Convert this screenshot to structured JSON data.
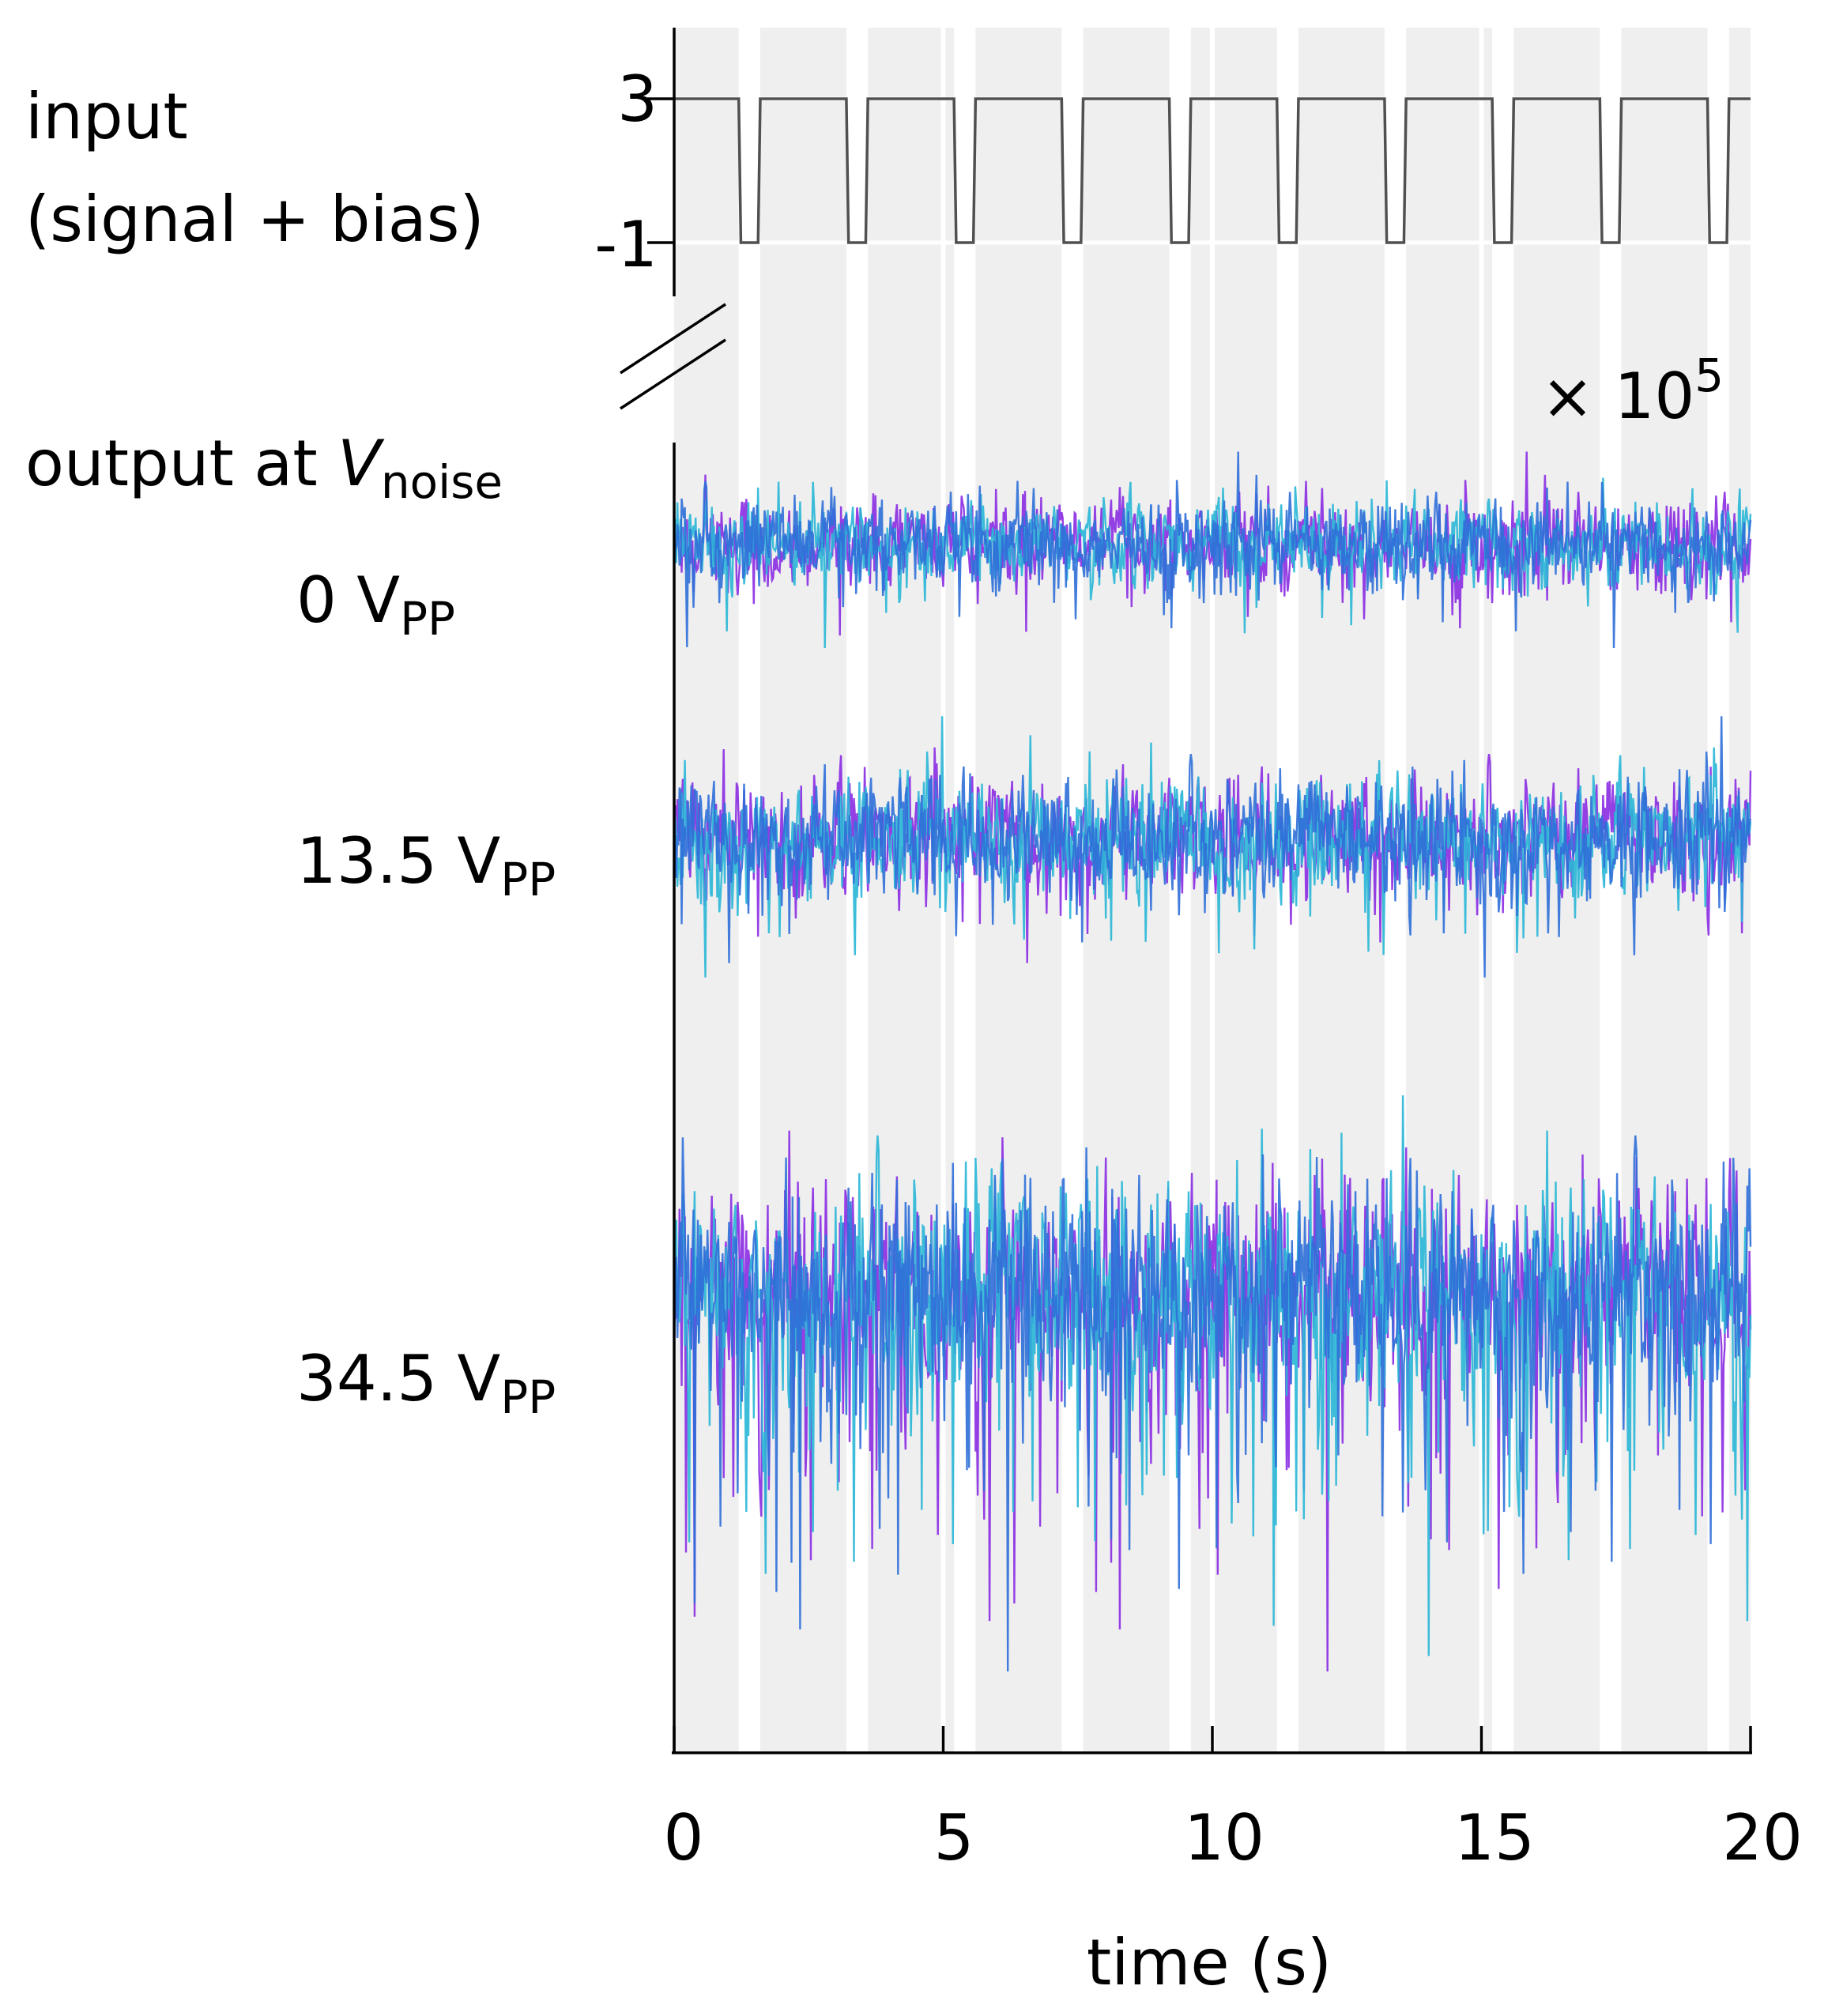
{
  "chart_data": {
    "type": "line",
    "xlabel": "time (s)",
    "xlim": [
      0,
      20
    ],
    "xticks": [
      "0",
      "5",
      "10",
      "15",
      "20"
    ],
    "input_panel": {
      "label_line1": "input",
      "label_line2": "(signal + bias)",
      "yticks": [
        "3",
        "-1"
      ],
      "high": 3,
      "low": -1,
      "low_intervals": [
        [
          1.2,
          1.6
        ],
        [
          3.2,
          3.6
        ],
        [
          5.2,
          5.6
        ],
        [
          7.2,
          7.6
        ],
        [
          9.2,
          9.6
        ],
        [
          11.2,
          11.6
        ],
        [
          13.2,
          13.6
        ],
        [
          15.2,
          15.6
        ],
        [
          17.2,
          17.6
        ],
        [
          19.2,
          19.6
        ]
      ]
    },
    "output_panel": {
      "label_prefix": "output at ",
      "label_var": "V",
      "label_sub": "noise",
      "scale_prefix": "× 10",
      "scale_exp": "5",
      "series_colors": [
        "#8a2be2",
        "#29b6d6",
        "#2f6fd8"
      ],
      "traces": [
        {
          "name_value": "0 V",
          "name_sub": "PP",
          "noise_amp": 1.0,
          "spike_rate": 0.02,
          "spike_amp": 2.0
        },
        {
          "name_value": "13.5 V",
          "name_sub": "PP",
          "noise_amp": 1.15,
          "spike_rate": 0.04,
          "spike_amp": 2.4
        },
        {
          "name_value": "34.5 V",
          "name_sub": "PP",
          "noise_amp": 1.7,
          "spike_rate": 0.08,
          "spike_amp": 5.0
        }
      ]
    }
  }
}
